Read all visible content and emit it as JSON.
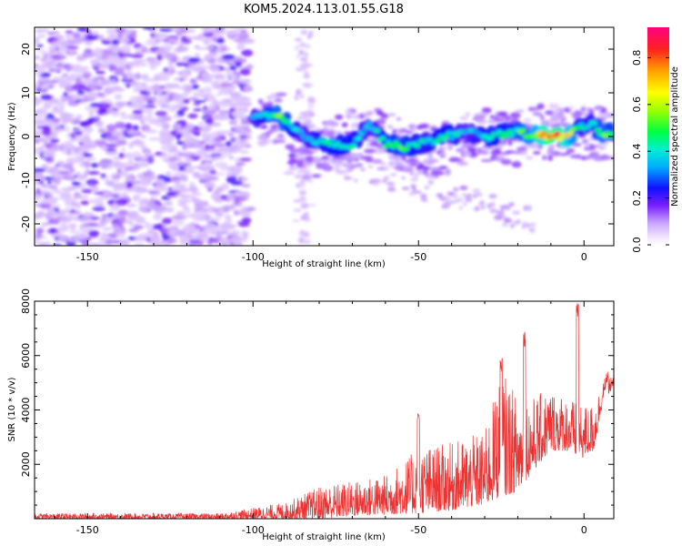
{
  "title": "KOM5.2024.113.01.55.G18",
  "chart_data": [
    {
      "type": "heatmap",
      "xlabel": "Height of straight line (km)",
      "ylabel": "Frequency (Hz)",
      "xlim": [
        -166,
        9
      ],
      "ylim": [
        -25,
        25
      ],
      "xticks": [
        -150,
        -100,
        -50,
        0
      ],
      "yticks": [
        20,
        10,
        0,
        -10,
        -20
      ],
      "colorbar": {
        "label": "Normalized spectral amplitude",
        "range": [
          0,
          0.93
        ],
        "ticks": [
          0.0,
          0.2,
          0.4,
          0.6,
          0.8
        ]
      },
      "ridge": {
        "description_points": [
          {
            "x": -100,
            "y": 4.5,
            "amp": 0.35
          },
          {
            "x": -92,
            "y": 4.5,
            "amp": 0.55
          },
          {
            "x": -85,
            "y": 0,
            "amp": 0.35
          },
          {
            "x": -78,
            "y": -1.5,
            "amp": 0.45
          },
          {
            "x": -70,
            "y": -2,
            "amp": 0.45
          },
          {
            "x": -65,
            "y": 3,
            "amp": 0.35
          },
          {
            "x": -60,
            "y": -1.5,
            "amp": 0.45
          },
          {
            "x": -55,
            "y": -2.5,
            "amp": 0.5
          },
          {
            "x": -48,
            "y": -1.5,
            "amp": 0.4
          },
          {
            "x": -42,
            "y": 0,
            "amp": 0.45
          },
          {
            "x": -35,
            "y": 1,
            "amp": 0.35
          },
          {
            "x": -28,
            "y": 0,
            "amp": 0.45
          },
          {
            "x": -22,
            "y": 1,
            "amp": 0.45
          },
          {
            "x": -15,
            "y": 0.5,
            "amp": 0.6
          },
          {
            "x": -10,
            "y": 0,
            "amp": 0.85
          },
          {
            "x": -5,
            "y": 0,
            "amp": 0.7
          },
          {
            "x": -2,
            "y": 2,
            "amp": 0.45
          },
          {
            "x": 2,
            "y": 3,
            "amp": 0.4
          },
          {
            "x": 6,
            "y": 0.5,
            "amp": 0.55
          },
          {
            "x": 9,
            "y": 1,
            "amp": 0.45
          }
        ]
      }
    },
    {
      "type": "line",
      "xlabel": "Height of straight line (km)",
      "ylabel": "SNR (10 * v/v)",
      "xlim": [
        -166,
        9
      ],
      "ylim": [
        0,
        8000
      ],
      "xticks": [
        -150,
        -100,
        -50,
        0
      ],
      "yticks": [
        2000,
        4000,
        6000,
        8000
      ],
      "series": [
        {
          "color": "#ee3333",
          "envelope": [
            {
              "x": -166,
              "low": 0,
              "high": 200
            },
            {
              "x": -110,
              "low": 0,
              "high": 200
            },
            {
              "x": -100,
              "low": 0,
              "high": 400
            },
            {
              "x": -90,
              "low": 0,
              "high": 600
            },
            {
              "x": -80,
              "low": 0,
              "high": 1200
            },
            {
              "x": -70,
              "low": 100,
              "high": 1400
            },
            {
              "x": -60,
              "low": 150,
              "high": 1600
            },
            {
              "x": -50,
              "low": 200,
              "high": 2600
            },
            {
              "x": -40,
              "low": 300,
              "high": 2800
            },
            {
              "x": -30,
              "low": 500,
              "high": 3200
            },
            {
              "x": -25,
              "low": 800,
              "high": 5500
            },
            {
              "x": -20,
              "low": 1000,
              "high": 4500
            },
            {
              "x": -15,
              "low": 1800,
              "high": 4500
            },
            {
              "x": -10,
              "low": 2500,
              "high": 4800
            },
            {
              "x": -5,
              "low": 2500,
              "high": 4500
            },
            {
              "x": -1,
              "low": 2200,
              "high": 4200
            },
            {
              "x": 3,
              "low": 2500,
              "high": 4200
            },
            {
              "x": 6,
              "low": 4500,
              "high": 5200
            },
            {
              "x": 9,
              "low": 4700,
              "high": 5300
            }
          ],
          "spikes": [
            {
              "x": -50,
              "y": 3900
            },
            {
              "x": -25,
              "y": 6000
            },
            {
              "x": -18,
              "y": 7000
            },
            {
              "x": -2,
              "y": 8100
            },
            {
              "x": 7,
              "y": 5400
            }
          ]
        }
      ]
    }
  ]
}
